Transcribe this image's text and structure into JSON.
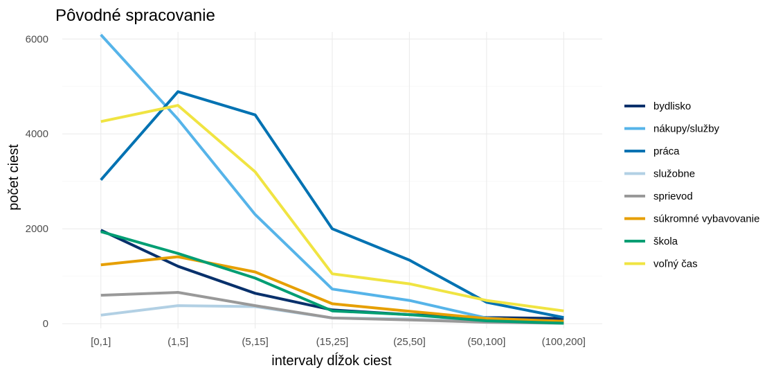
{
  "chart_data": {
    "type": "line",
    "title": "Pôvodné spracovanie",
    "xlabel": "intervaly dĺžok ciest",
    "ylabel": "počet ciest",
    "categories": [
      "[0,1]",
      "(1,5]",
      "(5,15]",
      "(15,25]",
      "(25,50]",
      "(50,100]",
      "(100,200]"
    ],
    "ylim": [
      -100,
      6150
    ],
    "yticks": [
      0,
      2000,
      4000,
      6000
    ],
    "grid": true,
    "legend_position": "right",
    "series": [
      {
        "name": "bydlisko",
        "color": "#08306b",
        "values": [
          1970,
          1210,
          640,
          290,
          190,
          130,
          110
        ]
      },
      {
        "name": "nákupy/služby",
        "color": "#56b4e9",
        "values": [
          6090,
          4310,
          2300,
          730,
          490,
          120,
          20
        ]
      },
      {
        "name": "práca",
        "color": "#0072b2",
        "values": [
          3030,
          4890,
          4400,
          2000,
          1340,
          450,
          130
        ]
      },
      {
        "name": "služobne",
        "color": "#b2d0e4",
        "values": [
          180,
          380,
          360,
          120,
          100,
          40,
          10
        ]
      },
      {
        "name": "sprievod",
        "color": "#999999",
        "values": [
          600,
          660,
          380,
          120,
          80,
          30,
          10
        ]
      },
      {
        "name": "súkromné vybavovanie",
        "color": "#e69f00",
        "values": [
          1240,
          1410,
          1090,
          420,
          260,
          110,
          50
        ]
      },
      {
        "name": "škola",
        "color": "#009e73",
        "values": [
          1940,
          1480,
          960,
          270,
          190,
          60,
          10
        ]
      },
      {
        "name": "voľný čas",
        "color": "#f0e442",
        "values": [
          4260,
          4600,
          3200,
          1050,
          840,
          490,
          270
        ]
      }
    ]
  }
}
